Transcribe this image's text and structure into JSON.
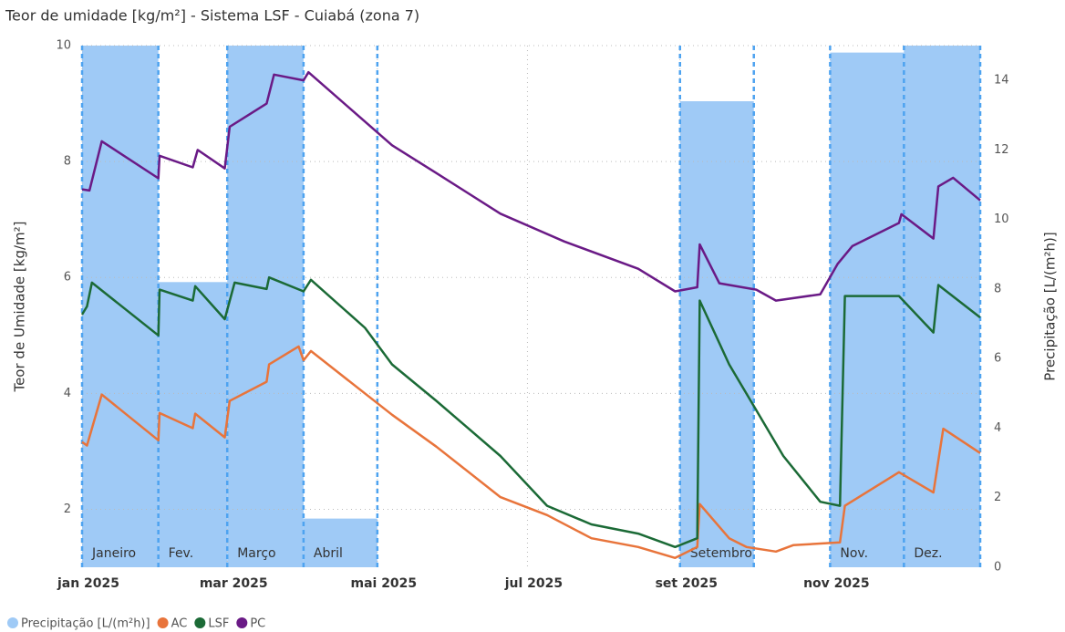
{
  "chart_data": {
    "type": "line",
    "title": "Teor de umidade [kg/m²] - Sistema LSF - Cuiabá (zona 7)",
    "y_label": "Teor de Umidade [kg/m²]",
    "y2_label": "Precipitação [L/(m²h)]",
    "xlim": [
      0,
      365
    ],
    "xticks": [
      {
        "value": 0,
        "label": "jan 2025"
      },
      {
        "value": 59,
        "label": "mar 2025"
      },
      {
        "value": 120,
        "label": "mai 2025"
      },
      {
        "value": 181,
        "label": "jul 2025"
      },
      {
        "value": 243,
        "label": "set 2025"
      },
      {
        "value": 304,
        "label": "nov 2025"
      }
    ],
    "ylim": [
      1,
      10
    ],
    "yticks": [
      2,
      4,
      6,
      8,
      10
    ],
    "y2lim": [
      0,
      15
    ],
    "y2ticks": [
      0,
      2,
      4,
      6,
      8,
      10,
      12,
      14
    ],
    "grid": true,
    "legend": "bottom-left",
    "series": [
      {
        "name": "Precipitação [L/(m²h)]",
        "type": "bar",
        "axis": "y2",
        "color": "#9fcaf6",
        "bins": [
          0,
          31,
          59,
          90,
          120,
          151,
          181,
          212,
          243,
          273,
          304,
          334,
          365
        ],
        "values": [
          15,
          8.2,
          15,
          1.4,
          0,
          0,
          0,
          0,
          13.4,
          0,
          14.8,
          15
        ],
        "labels": [
          "Janeiro",
          "Fev.",
          "Março",
          "Abril",
          null,
          null,
          null,
          null,
          "Setembro",
          null,
          "Nov.",
          "Dez."
        ]
      },
      {
        "name": "AC",
        "color": "#e8743b",
        "x": [
          0,
          2,
          8,
          31,
          31.5,
          45,
          46,
          58,
          60,
          75,
          76,
          88,
          90,
          93,
          126,
          144,
          170,
          189,
          207,
          226,
          241,
          250,
          251,
          263,
          270,
          282,
          289,
          308,
          310,
          332,
          346,
          350,
          365
        ],
        "values": [
          3.16,
          3.1,
          3.98,
          3.19,
          3.66,
          3.4,
          3.65,
          3.24,
          3.87,
          4.2,
          4.5,
          4.81,
          4.57,
          4.73,
          3.63,
          3.08,
          2.21,
          1.9,
          1.5,
          1.35,
          1.16,
          1.35,
          2.09,
          1.5,
          1.35,
          1.27,
          1.38,
          1.43,
          2.06,
          2.64,
          2.29,
          3.39,
          2.97
        ]
      },
      {
        "name": "LSF",
        "color": "#1b6a36",
        "x": [
          0,
          2,
          4,
          31,
          31.5,
          45,
          46,
          58,
          62,
          75,
          76,
          90,
          93,
          115,
          126,
          144,
          170,
          189,
          207,
          226,
          241,
          250,
          251,
          263,
          274,
          285,
          300,
          308,
          310,
          332,
          346,
          348,
          365
        ],
        "values": [
          5.36,
          5.5,
          5.91,
          5.0,
          5.79,
          5.6,
          5.85,
          5.28,
          5.91,
          5.8,
          6.0,
          5.76,
          5.96,
          5.13,
          4.5,
          3.87,
          2.92,
          2.06,
          1.74,
          1.58,
          1.35,
          1.5,
          5.6,
          4.5,
          3.71,
          2.92,
          2.13,
          2.06,
          5.68,
          5.68,
          5.05,
          5.87,
          5.31
        ]
      },
      {
        "name": "PC",
        "color": "#6a1a86",
        "x": [
          0,
          3,
          8,
          31,
          31.5,
          45,
          47,
          58,
          60,
          75,
          78,
          90,
          92,
          126,
          144,
          170,
          196,
          226,
          241,
          250,
          251,
          259,
          274,
          282,
          300,
          307,
          313,
          332,
          333,
          346,
          348,
          354,
          365
        ],
        "values": [
          7.52,
          7.5,
          8.35,
          7.71,
          8.1,
          7.9,
          8.2,
          7.88,
          8.6,
          9.0,
          9.5,
          9.4,
          9.54,
          8.28,
          7.8,
          7.1,
          6.62,
          6.15,
          5.76,
          5.83,
          6.57,
          5.9,
          5.79,
          5.6,
          5.71,
          6.23,
          6.54,
          6.94,
          7.09,
          6.67,
          7.57,
          7.72,
          7.33
        ]
      }
    ]
  }
}
